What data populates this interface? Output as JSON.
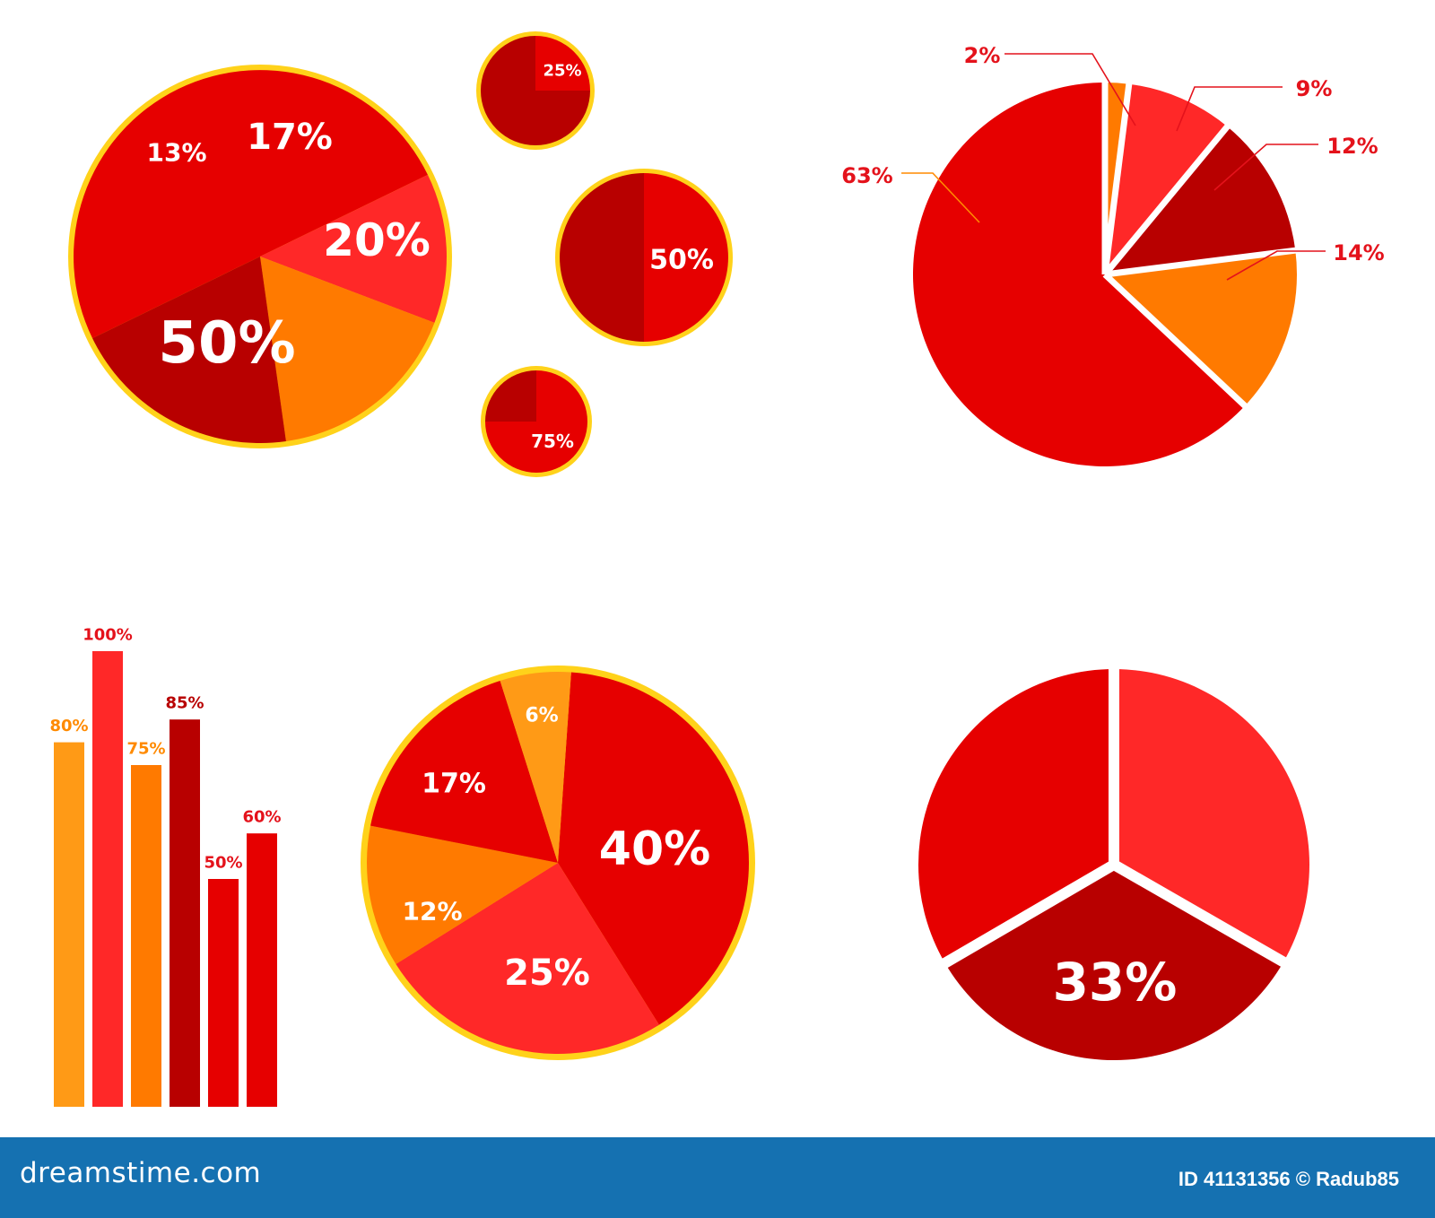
{
  "colors": {
    "red": "#e60000",
    "bright_red": "#ff2828",
    "dark_red": "#b80000",
    "orange": "#ff7a00",
    "light_orange": "#ff9a16",
    "gold": "#ffd21a",
    "label_red": "#e4121b",
    "label_orange": "#ff8a00",
    "footer_blue": "#1571b1"
  },
  "chart_data": [
    {
      "type": "pie",
      "title": "",
      "slices": [
        {
          "label": "50%",
          "value": 50,
          "color": "#e60000"
        },
        {
          "label": "13%",
          "value": 13,
          "color": "#ff2828"
        },
        {
          "label": "17%",
          "value": 17,
          "color": "#ff7a00"
        },
        {
          "label": "20%",
          "value": 20,
          "color": "#b80000"
        }
      ]
    },
    {
      "type": "pie",
      "title": "",
      "slices": [
        {
          "label": "25%",
          "value": 25,
          "color": "#e60000"
        },
        {
          "label": "",
          "value": 75,
          "color": "#b80000"
        }
      ]
    },
    {
      "type": "pie",
      "title": "",
      "slices": [
        {
          "label": "50%",
          "value": 50,
          "color": "#e60000"
        },
        {
          "label": "",
          "value": 50,
          "color": "#b80000"
        }
      ]
    },
    {
      "type": "pie",
      "title": "",
      "slices": [
        {
          "label": "75%",
          "value": 75,
          "color": "#e60000"
        },
        {
          "label": "",
          "value": 25,
          "color": "#b80000"
        }
      ]
    },
    {
      "type": "pie",
      "title": "",
      "exploded": true,
      "slices": [
        {
          "label": "2%",
          "value": 2,
          "color": "#ff7a00"
        },
        {
          "label": "9%",
          "value": 9,
          "color": "#ff2828"
        },
        {
          "label": "12%",
          "value": 12,
          "color": "#b80000"
        },
        {
          "label": "14%",
          "value": 14,
          "color": "#ff7a00"
        },
        {
          "label": "63%",
          "value": 63,
          "color": "#e60000"
        }
      ]
    },
    {
      "type": "bar",
      "title": "",
      "categories": [
        "",
        "",
        "",
        "",
        "",
        ""
      ],
      "values": [
        80,
        100,
        75,
        85,
        50,
        60
      ],
      "labels": [
        "80%",
        "100%",
        "75%",
        "85%",
        "50%",
        "60%"
      ],
      "colors": [
        "#ff9a16",
        "#ff2828",
        "#ff7a00",
        "#b80000",
        "#e60000",
        "#e60000"
      ],
      "label_colors": [
        "#ff8a00",
        "#e4121b",
        "#ff8a00",
        "#b80000",
        "#e4121b",
        "#e4121b"
      ],
      "ylim": [
        0,
        100
      ]
    },
    {
      "type": "pie",
      "title": "",
      "slices": [
        {
          "label": "40%",
          "value": 40,
          "color": "#e60000"
        },
        {
          "label": "25%",
          "value": 25,
          "color": "#ff2828"
        },
        {
          "label": "12%",
          "value": 12,
          "color": "#ff7a00"
        },
        {
          "label": "17%",
          "value": 17,
          "color": "#e60000"
        },
        {
          "label": "6%",
          "value": 6,
          "color": "#ff9a16"
        }
      ]
    },
    {
      "type": "pie",
      "title": "",
      "exploded": true,
      "slices": [
        {
          "label": "",
          "value": 33.3,
          "color": "#ff2828"
        },
        {
          "label": "33%",
          "value": 33.3,
          "color": "#b80000"
        },
        {
          "label": "",
          "value": 33.4,
          "color": "#e60000"
        }
      ]
    }
  ],
  "footer": {
    "logo": "dreamstime.com",
    "id_text": "ID 41131356 © Radub85"
  }
}
